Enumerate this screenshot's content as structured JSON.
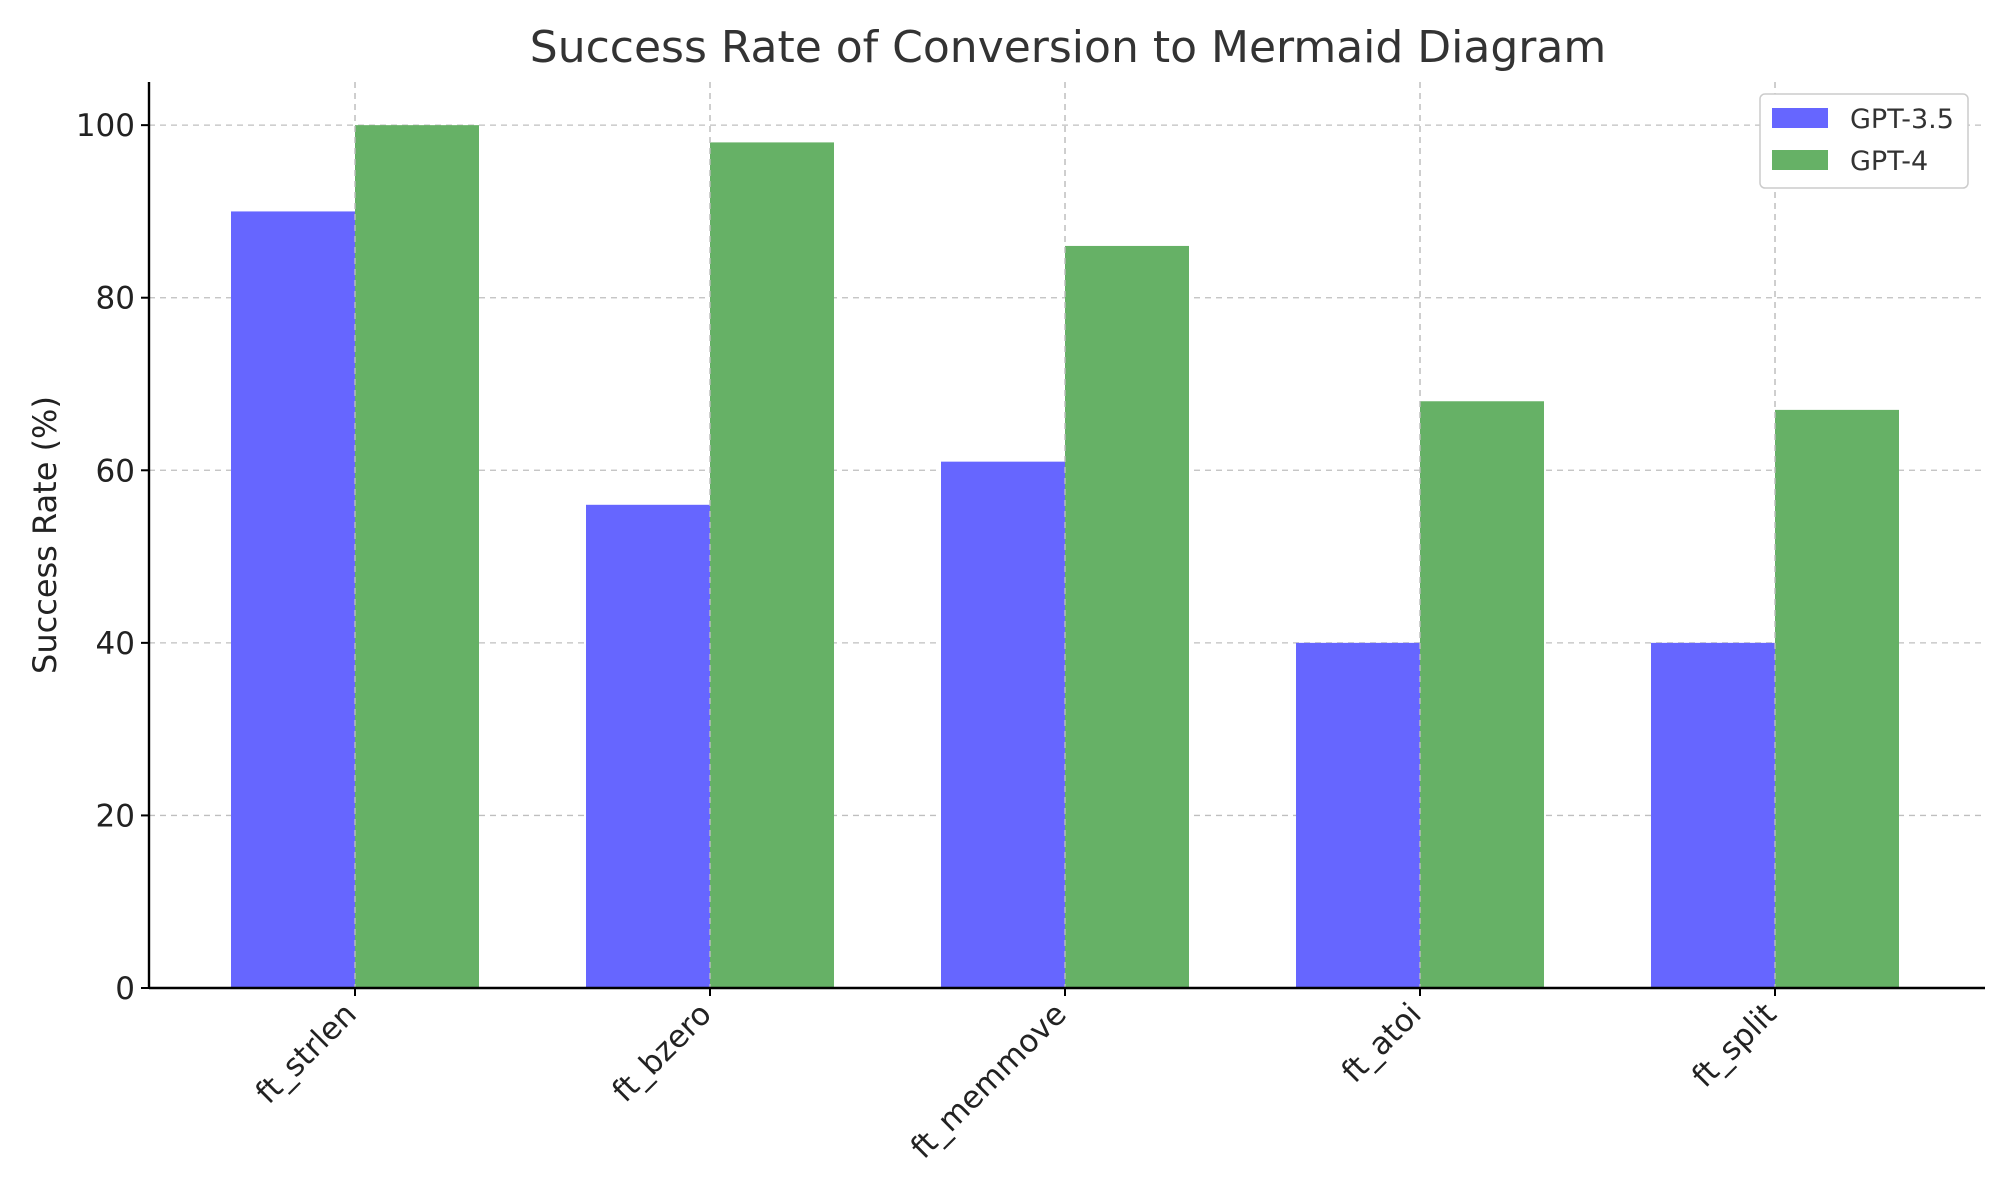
{
  "chart_data": {
    "type": "bar",
    "title": "Success Rate of Conversion to Mermaid Diagram",
    "xlabel": "",
    "ylabel": "Success Rate (%)",
    "categories": [
      "ft_strlen",
      "ft_bzero",
      "ft_memmove",
      "ft_atoi",
      "ft_split"
    ],
    "series": [
      {
        "name": "GPT-3.5",
        "color": "#6666ff",
        "values": [
          90,
          56,
          61,
          40,
          40
        ]
      },
      {
        "name": "GPT-4",
        "color": "#66b166",
        "values": [
          100,
          98,
          86,
          68,
          67
        ]
      }
    ],
    "ylim": [
      0,
      105
    ],
    "yticks": [
      0,
      20,
      40,
      60,
      80,
      100
    ],
    "grid": true,
    "legend_position": "top-right"
  }
}
